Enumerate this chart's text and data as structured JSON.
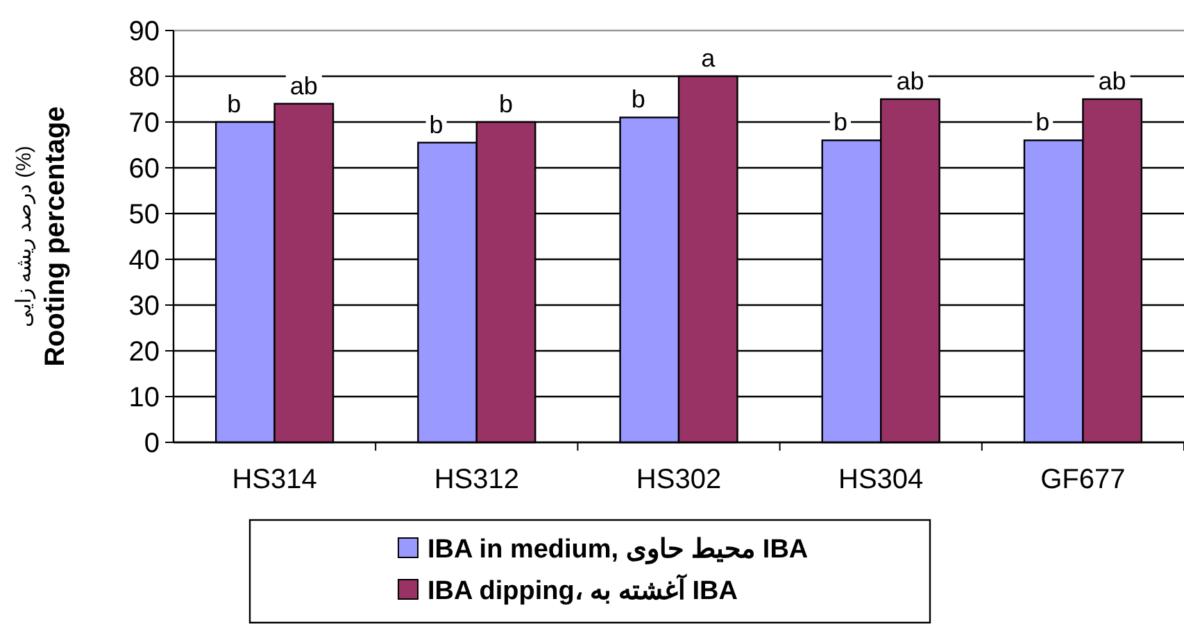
{
  "chart_data": {
    "type": "bar",
    "ylabel": "درصد ریشه زایی (%)\nRooting percentage",
    "categories": [
      "HS314",
      "HS312",
      "HS302",
      "HS304",
      "GF677"
    ],
    "series": [
      {
        "name": "IBA in medium, محیط حاوی IBA",
        "color": "#9999ff",
        "values": [
          70,
          65.5,
          71,
          66,
          66
        ],
        "value_labels": [
          "b",
          "b",
          "b",
          "b",
          "b"
        ]
      },
      {
        "name": "IBA dipping، آغشته به IBA",
        "color": "#993366",
        "values": [
          74,
          70,
          80,
          75,
          75
        ],
        "value_labels": [
          "ab",
          "b",
          "a",
          "ab",
          "ab"
        ]
      }
    ],
    "ylim": [
      0,
      90
    ],
    "yticks": [
      0,
      10,
      20,
      30,
      40,
      50,
      60,
      70,
      80,
      90
    ],
    "grid": "y",
    "legend": "bottom"
  }
}
